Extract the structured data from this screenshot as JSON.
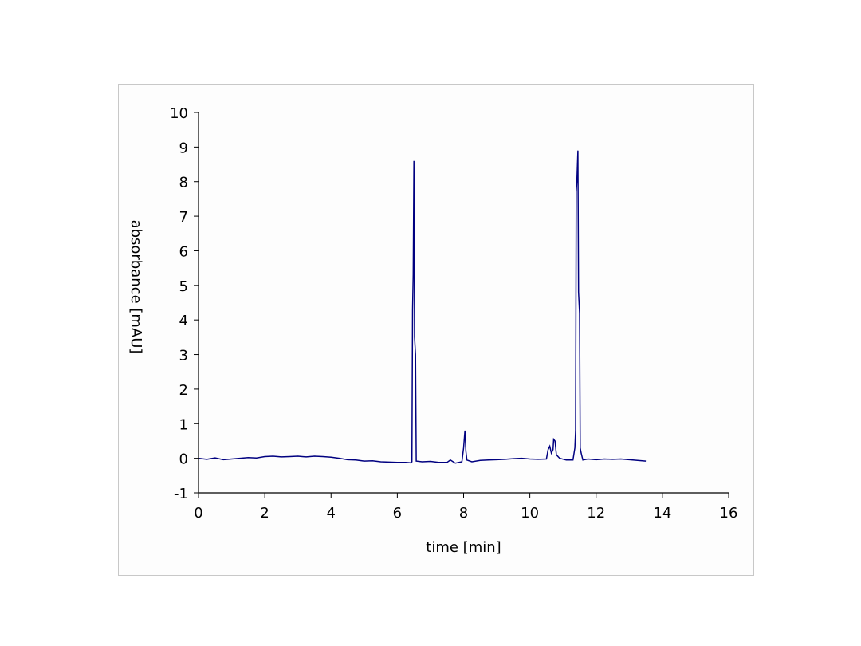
{
  "chart_data": {
    "type": "line",
    "title": "",
    "xlabel": "time [min]",
    "ylabel": "absorbance [mAU]",
    "xlim": [
      0,
      16
    ],
    "ylim": [
      -1,
      10
    ],
    "xticks": [
      0,
      2,
      4,
      6,
      8,
      10,
      12,
      14,
      16
    ],
    "yticks": [
      -1,
      0,
      1,
      2,
      3,
      4,
      5,
      6,
      7,
      8,
      9,
      10
    ],
    "grid": false,
    "line_color": "#000080",
    "series": [
      {
        "points": [
          [
            0,
            0
          ],
          [
            0.25,
            -0.03
          ],
          [
            0.5,
            0.01
          ],
          [
            0.75,
            -0.04
          ],
          [
            1,
            -0.02
          ],
          [
            1.25,
            0.0
          ],
          [
            1.5,
            0.02
          ],
          [
            1.75,
            0.01
          ],
          [
            2,
            0.05
          ],
          [
            2.25,
            0.06
          ],
          [
            2.5,
            0.04
          ],
          [
            2.75,
            0.05
          ],
          [
            3,
            0.06
          ],
          [
            3.25,
            0.04
          ],
          [
            3.5,
            0.06
          ],
          [
            3.75,
            0.05
          ],
          [
            4,
            0.03
          ],
          [
            4.25,
            0.0
          ],
          [
            4.5,
            -0.04
          ],
          [
            4.75,
            -0.05
          ],
          [
            5,
            -0.08
          ],
          [
            5.25,
            -0.07
          ],
          [
            5.5,
            -0.1
          ],
          [
            5.75,
            -0.11
          ],
          [
            6,
            -0.12
          ],
          [
            6.25,
            -0.12
          ],
          [
            6.4,
            -0.13
          ],
          [
            6.44,
            -0.1
          ],
          [
            6.46,
            4.3
          ],
          [
            6.48,
            5.3
          ],
          [
            6.5,
            8.6
          ],
          [
            6.52,
            3.5
          ],
          [
            6.55,
            3.0
          ],
          [
            6.57,
            -0.08
          ],
          [
            6.75,
            -0.1
          ],
          [
            7,
            -0.09
          ],
          [
            7.25,
            -0.12
          ],
          [
            7.5,
            -0.12
          ],
          [
            7.6,
            -0.05
          ],
          [
            7.75,
            -0.14
          ],
          [
            7.95,
            -0.1
          ],
          [
            8.0,
            0.3
          ],
          [
            8.04,
            0.8
          ],
          [
            8.07,
            0.2
          ],
          [
            8.1,
            -0.05
          ],
          [
            8.25,
            -0.1
          ],
          [
            8.5,
            -0.06
          ],
          [
            8.75,
            -0.05
          ],
          [
            9,
            -0.04
          ],
          [
            9.25,
            -0.03
          ],
          [
            9.5,
            -0.01
          ],
          [
            9.75,
            0.0
          ],
          [
            10,
            -0.02
          ],
          [
            10.25,
            -0.03
          ],
          [
            10.5,
            -0.02
          ],
          [
            10.55,
            0.25
          ],
          [
            10.6,
            0.35
          ],
          [
            10.65,
            0.15
          ],
          [
            10.7,
            0.25
          ],
          [
            10.72,
            0.55
          ],
          [
            10.76,
            0.5
          ],
          [
            10.8,
            0.1
          ],
          [
            10.9,
            0.0
          ],
          [
            11.1,
            -0.05
          ],
          [
            11.3,
            -0.05
          ],
          [
            11.36,
            0.3
          ],
          [
            11.38,
            0.8
          ],
          [
            11.4,
            7.7
          ],
          [
            11.42,
            8.0
          ],
          [
            11.45,
            8.9
          ],
          [
            11.47,
            4.8
          ],
          [
            11.5,
            4.2
          ],
          [
            11.52,
            0.3
          ],
          [
            11.55,
            0.15
          ],
          [
            11.6,
            -0.05
          ],
          [
            11.75,
            -0.02
          ],
          [
            12,
            -0.04
          ],
          [
            12.25,
            -0.02
          ],
          [
            12.5,
            -0.03
          ],
          [
            12.75,
            -0.02
          ],
          [
            13,
            -0.04
          ],
          [
            13.25,
            -0.06
          ],
          [
            13.5,
            -0.08
          ]
        ]
      }
    ]
  }
}
